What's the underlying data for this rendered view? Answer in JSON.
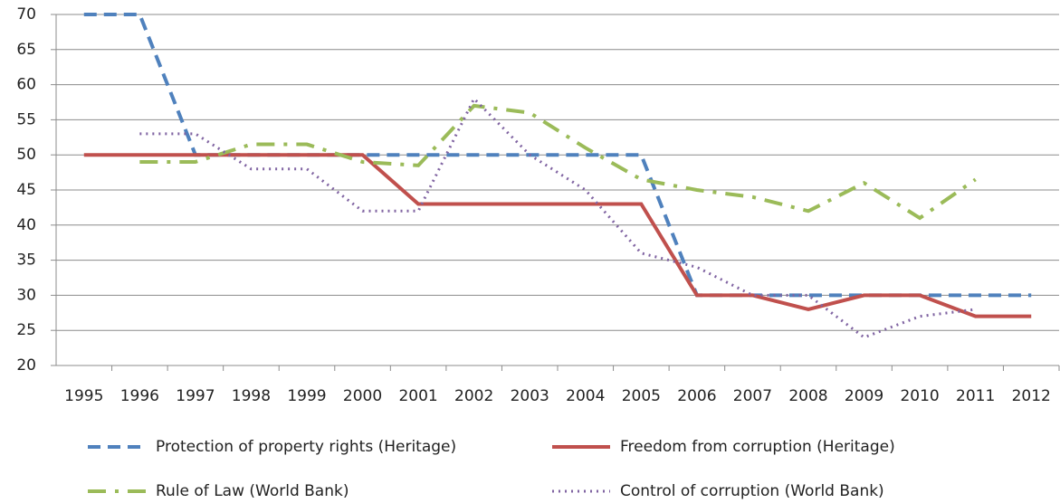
{
  "chart_data": {
    "type": "line",
    "categories": [
      "1995",
      "1996",
      "1997",
      "1998",
      "1999",
      "2000",
      "2001",
      "2002",
      "2003",
      "2004",
      "2005",
      "2006",
      "2007",
      "2008",
      "2009",
      "2010",
      "2011",
      "2012"
    ],
    "series": [
      {
        "name": "Protection of property rights (Heritage)",
        "color": "#4f81bd",
        "values": [
          70,
          70,
          50,
          50,
          50,
          50,
          50,
          50,
          50,
          50,
          50,
          30,
          30,
          30,
          30,
          30,
          30,
          30
        ]
      },
      {
        "name": "Freedom from corruption (Heritage)",
        "color": "#c0504d",
        "values": [
          50,
          50,
          50,
          50,
          50,
          50,
          43,
          43,
          43,
          43,
          43,
          30,
          30,
          28,
          30,
          30,
          27,
          27
        ]
      },
      {
        "name": "Rule of Law (World Bank)",
        "color": "#9bbb59",
        "values": [
          null,
          49,
          49,
          51.5,
          51.5,
          49,
          48.5,
          57,
          56,
          51,
          46.5,
          45,
          44,
          42,
          46,
          41,
          46.5,
          null
        ]
      },
      {
        "name": "Control of corruption (World Bank)",
        "color": "#8064a2",
        "values": [
          null,
          53,
          53,
          48,
          48,
          42,
          42,
          58,
          50,
          45,
          36,
          34,
          30,
          30,
          24,
          27,
          28,
          null
        ]
      }
    ],
    "ylim": [
      20,
      70
    ],
    "yticks": [
      20,
      25,
      30,
      35,
      40,
      45,
      50,
      55,
      60,
      65,
      70
    ],
    "grid": true,
    "legend": "bottom"
  }
}
